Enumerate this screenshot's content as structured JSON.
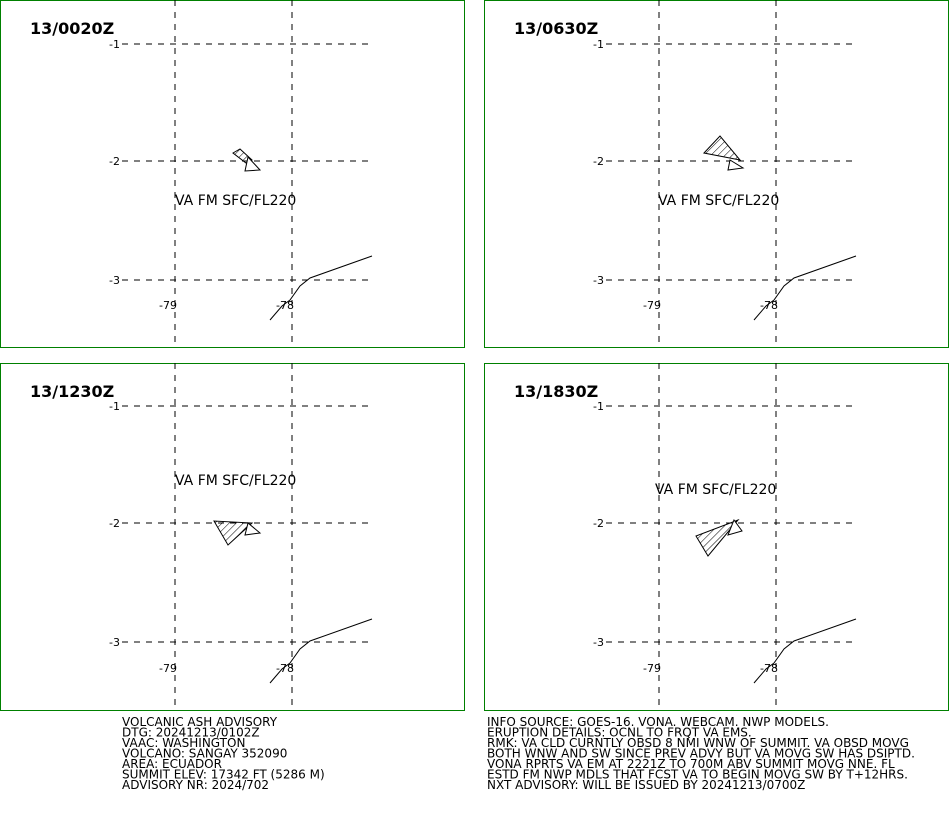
{
  "panels": [
    {
      "time": "13/0020Z",
      "ash_label": "VA FM SFC/FL220",
      "lat_ticks": [
        "-1",
        "-2",
        "-3"
      ],
      "lon_ticks": [
        "-79",
        "-78"
      ]
    },
    {
      "time": "13/0630Z",
      "ash_label": "VA FM SFC/FL220",
      "lat_ticks": [
        "-1",
        "-2",
        "-3"
      ],
      "lon_ticks": [
        "-79",
        "-78"
      ]
    },
    {
      "time": "13/1230Z",
      "ash_label": "VA FM SFC/FL220",
      "lat_ticks": [
        "-1",
        "-2",
        "-3"
      ],
      "lon_ticks": [
        "-79",
        "-78"
      ]
    },
    {
      "time": "13/1830Z",
      "ash_label": "VA FM SFC/FL220",
      "lat_ticks": [
        "-1",
        "-2",
        "-3"
      ],
      "lon_ticks": [
        "-79",
        "-78"
      ]
    }
  ],
  "advisory_left": [
    "VOLCANIC ASH ADVISORY",
    "DTG: 20241213/0102Z",
    "VAAC: WASHINGTON",
    "VOLCANO: SANGAY 352090",
    "AREA: ECUADOR",
    "SUMMIT ELEV: 17342 FT (5286 M)",
    "ADVISORY NR: 2024/702"
  ],
  "advisory_right": [
    "INFO SOURCE: GOES-16. VONA. WEBCAM. NWP MODELS.",
    "ERUPTION DETAILS: OCNL TO FRQT VA EMS.",
    "RMK: VA CLD CURNTLY OBSD 8 NMI WNW OF SUMMIT. VA OBSD MOVG",
    "BOTH WNW AND SW SINCE PREV ADVY BUT VA MOVG SW HAS DSIPTD.",
    "VONA RPRTS VA EM AT 2221Z TO 700M ABV SUMMIT MOVG NNE. FL",
    "ESTD FM NWP MDLS THAT FCST VA TO BEGIN MOVG SW BY T+12HRS.",
    "NXT ADVISORY: WILL BE ISSUED BY 20241213/0700Z"
  ]
}
